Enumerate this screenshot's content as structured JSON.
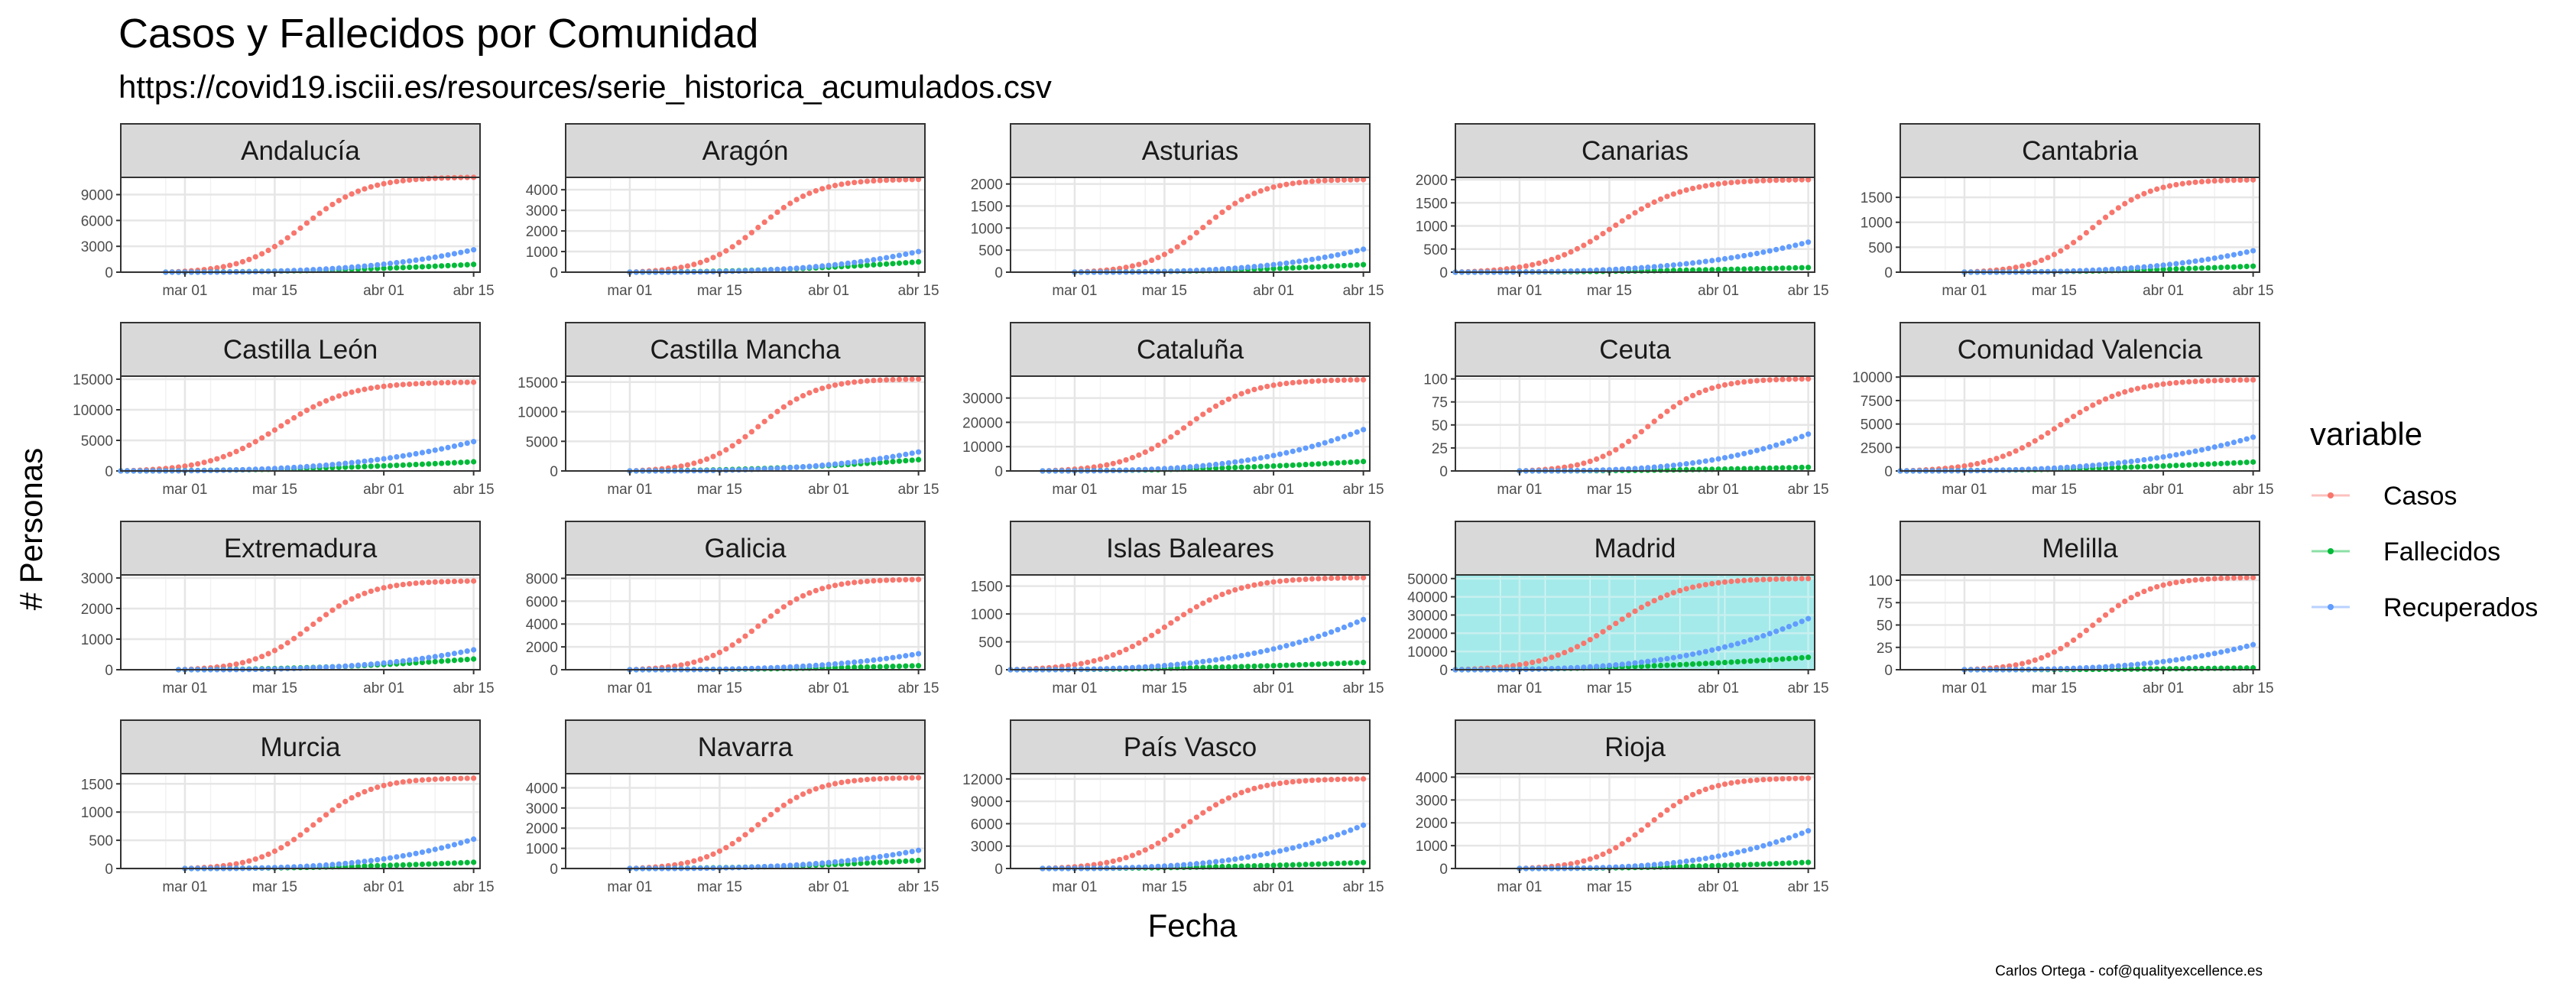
{
  "title": "Casos y Fallecidos por Comunidad",
  "subtitle": "https://covid19.isciii.es/resources/serie_historica_acumulados.csv",
  "caption": "Carlos Ortega - cof@qualityexcellence.es",
  "colors": {
    "Casos": "#F8766D",
    "Fallecidos": "#00BA38",
    "Recuperados": "#619CFF",
    "highlight_panel_bg": "#A5EAEA",
    "strip_bg": "#D9D9D9"
  },
  "chart_data": {
    "type": "scatter",
    "xlabel": "Fecha",
    "ylabel": "# Personas",
    "x_ticks": [
      "mar 01",
      "mar 15",
      "abr 01",
      "abr 15"
    ],
    "x_range": [
      "2020-02-20",
      "2020-04-16"
    ],
    "grid": true,
    "legend": {
      "title": "variable",
      "entries": [
        "Casos",
        "Fallecidos",
        "Recuperados"
      ],
      "position": "right"
    },
    "panels": [
      {
        "name": "Andalucía",
        "y_ticks": [
          0,
          3000,
          6000,
          9000
        ],
        "ylim": [
          0,
          11000
        ],
        "start": "2020-02-27",
        "casos": 11000,
        "fallecidos": 900,
        "recuperados": 2600,
        "highlight": false
      },
      {
        "name": "Aragón",
        "y_ticks": [
          0,
          1000,
          2000,
          3000,
          4000
        ],
        "ylim": [
          0,
          4600
        ],
        "start": "2020-03-01",
        "casos": 4500,
        "fallecidos": 500,
        "recuperados": 1000,
        "highlight": false
      },
      {
        "name": "Asturias",
        "y_ticks": [
          0,
          500,
          1000,
          1500,
          2000
        ],
        "ylim": [
          0,
          2150
        ],
        "start": "2020-03-01",
        "casos": 2100,
        "fallecidos": 170,
        "recuperados": 520,
        "highlight": false
      },
      {
        "name": "Canarias",
        "y_ticks": [
          0,
          500,
          1000,
          1500,
          2000
        ],
        "ylim": [
          0,
          2050
        ],
        "start": "2020-02-20",
        "casos": 2000,
        "fallecidos": 100,
        "recuperados": 650,
        "highlight": false
      },
      {
        "name": "Cantabria",
        "y_ticks": [
          0,
          500,
          1000,
          1500
        ],
        "ylim": [
          0,
          1900
        ],
        "start": "2020-03-01",
        "casos": 1850,
        "fallecidos": 120,
        "recuperados": 430,
        "highlight": false
      },
      {
        "name": "Castilla León",
        "y_ticks": [
          0,
          5000,
          10000,
          15000
        ],
        "ylim": [
          0,
          15500
        ],
        "start": "2020-02-20",
        "casos": 14500,
        "fallecidos": 1500,
        "recuperados": 4800,
        "highlight": false
      },
      {
        "name": "Castilla Mancha",
        "y_ticks": [
          0,
          5000,
          10000,
          15000
        ],
        "ylim": [
          0,
          16000
        ],
        "start": "2020-03-01",
        "casos": 15500,
        "fallecidos": 1900,
        "recuperados": 3200,
        "highlight": false
      },
      {
        "name": "Cataluña",
        "y_ticks": [
          0,
          10000,
          20000,
          30000
        ],
        "ylim": [
          0,
          39000
        ],
        "start": "2020-02-25",
        "casos": 37500,
        "fallecidos": 3900,
        "recuperados": 17000,
        "highlight": false
      },
      {
        "name": "Ceuta",
        "y_ticks": [
          0,
          25,
          50,
          75,
          100
        ],
        "ylim": [
          0,
          103
        ],
        "start": "2020-03-01",
        "casos": 100,
        "fallecidos": 4,
        "recuperados": 40,
        "highlight": false
      },
      {
        "name": "Comunidad Valencia",
        "y_ticks": [
          0,
          2500,
          5000,
          7500,
          10000
        ],
        "ylim": [
          0,
          10100
        ],
        "start": "2020-02-20",
        "casos": 9700,
        "fallecidos": 950,
        "recuperados": 3600,
        "highlight": false
      },
      {
        "name": "Extremadura",
        "y_ticks": [
          0,
          1000,
          2000,
          3000
        ],
        "ylim": [
          0,
          3100
        ],
        "start": "2020-02-29",
        "casos": 2900,
        "fallecidos": 350,
        "recuperados": 650,
        "highlight": false
      },
      {
        "name": "Galicia",
        "y_ticks": [
          0,
          2000,
          4000,
          6000,
          8000
        ],
        "ylim": [
          0,
          8300
        ],
        "start": "2020-03-01",
        "casos": 7900,
        "fallecidos": 350,
        "recuperados": 1400,
        "highlight": false
      },
      {
        "name": "Islas Baleares",
        "y_ticks": [
          0,
          500,
          1000,
          1500
        ],
        "ylim": [
          0,
          1700
        ],
        "start": "2020-02-20",
        "casos": 1650,
        "fallecidos": 130,
        "recuperados": 900,
        "highlight": false
      },
      {
        "name": "Madrid",
        "y_ticks": [
          0,
          10000,
          20000,
          30000,
          40000,
          50000
        ],
        "ylim": [
          0,
          52000
        ],
        "start": "2020-02-20",
        "casos": 50000,
        "fallecidos": 6800,
        "recuperados": 28000,
        "highlight": true
      },
      {
        "name": "Melilla",
        "y_ticks": [
          0,
          25,
          50,
          75,
          100
        ],
        "ylim": [
          0,
          106
        ],
        "start": "2020-03-01",
        "casos": 103,
        "fallecidos": 2,
        "recuperados": 28,
        "highlight": false
      },
      {
        "name": "Murcia",
        "y_ticks": [
          0,
          500,
          1000,
          1500
        ],
        "ylim": [
          0,
          1680
        ],
        "start": "2020-03-01",
        "casos": 1600,
        "fallecidos": 110,
        "recuperados": 520,
        "highlight": false
      },
      {
        "name": "Navarra",
        "y_ticks": [
          0,
          1000,
          2000,
          3000,
          4000
        ],
        "ylim": [
          0,
          4700
        ],
        "start": "2020-03-01",
        "casos": 4500,
        "fallecidos": 400,
        "recuperados": 900,
        "highlight": false
      },
      {
        "name": "País Vasco",
        "y_ticks": [
          0,
          3000,
          6000,
          9000,
          12000
        ],
        "ylim": [
          0,
          12700
        ],
        "start": "2020-02-25",
        "casos": 12000,
        "fallecidos": 800,
        "recuperados": 5800,
        "highlight": false
      },
      {
        "name": "Rioja",
        "y_ticks": [
          0,
          1000,
          2000,
          3000,
          4000
        ],
        "ylim": [
          0,
          4150
        ],
        "start": "2020-03-01",
        "casos": 3950,
        "fallecidos": 270,
        "recuperados": 1650,
        "highlight": false
      }
    ]
  }
}
